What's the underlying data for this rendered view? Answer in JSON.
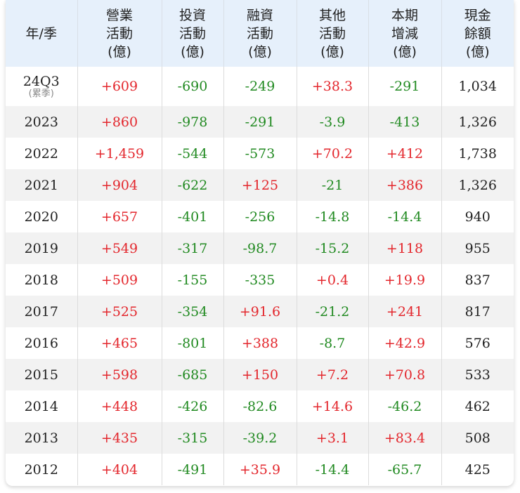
{
  "columns": [
    [
      "年/季"
    ],
    [
      "營業",
      "活動",
      "(億)"
    ],
    [
      "投資",
      "活動",
      "(億)"
    ],
    [
      "融資",
      "活動",
      "(億)"
    ],
    [
      "其他",
      "活動",
      "(億)"
    ],
    [
      "本期",
      "增減",
      "(億)"
    ],
    [
      "現金",
      "餘額",
      "(億)"
    ]
  ],
  "rows": [
    {
      "period": "24Q3",
      "note": "(累季)",
      "values": [
        "+609",
        "-690",
        "-249",
        "+38.3",
        "-291",
        "1,034"
      ]
    },
    {
      "period": "2023",
      "values": [
        "+860",
        "-978",
        "-291",
        "-3.9",
        "-413",
        "1,326"
      ]
    },
    {
      "period": "2022",
      "values": [
        "+1,459",
        "-544",
        "-573",
        "+70.2",
        "+412",
        "1,738"
      ]
    },
    {
      "period": "2021",
      "values": [
        "+904",
        "-622",
        "+125",
        "-21",
        "+386",
        "1,326"
      ]
    },
    {
      "period": "2020",
      "values": [
        "+657",
        "-401",
        "-256",
        "-14.8",
        "-14.4",
        "940"
      ]
    },
    {
      "period": "2019",
      "values": [
        "+549",
        "-317",
        "-98.7",
        "-15.2",
        "+118",
        "955"
      ]
    },
    {
      "period": "2018",
      "values": [
        "+509",
        "-155",
        "-335",
        "+0.4",
        "+19.9",
        "837"
      ]
    },
    {
      "period": "2017",
      "values": [
        "+525",
        "-354",
        "+91.6",
        "-21.2",
        "+241",
        "817"
      ]
    },
    {
      "period": "2016",
      "values": [
        "+465",
        "-801",
        "+388",
        "-8.7",
        "+42.9",
        "576"
      ]
    },
    {
      "period": "2015",
      "values": [
        "+598",
        "-685",
        "+150",
        "+7.2",
        "+70.8",
        "533"
      ]
    },
    {
      "period": "2014",
      "values": [
        "+448",
        "-426",
        "-82.6",
        "+14.6",
        "-46.2",
        "462"
      ]
    },
    {
      "period": "2013",
      "values": [
        "+435",
        "-315",
        "-39.2",
        "+3.1",
        "+83.4",
        "508"
      ]
    },
    {
      "period": "2012",
      "values": [
        "+404",
        "-491",
        "+35.9",
        "-14.4",
        "-65.7",
        "425"
      ]
    }
  ]
}
